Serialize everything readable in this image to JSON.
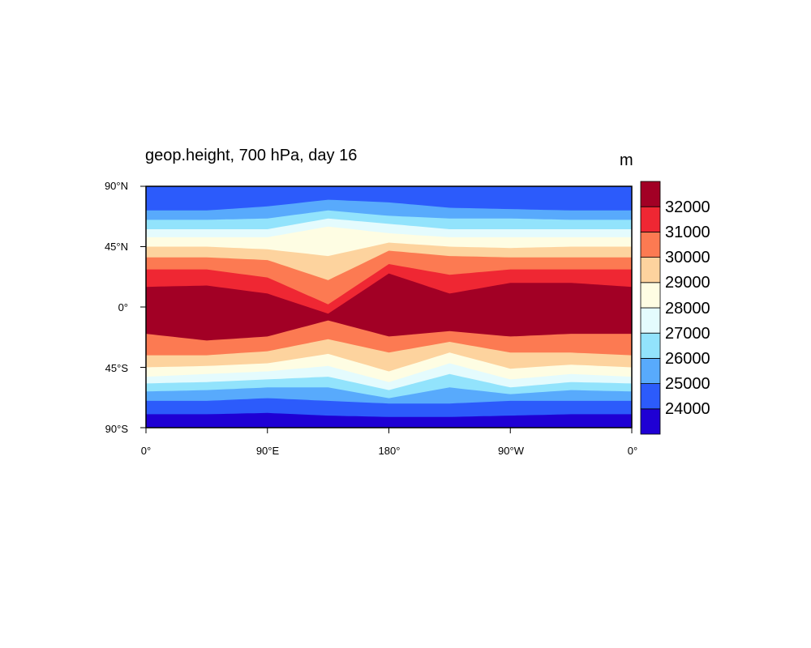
{
  "title": "geop.height, 700 hPa, day 16",
  "units": "m",
  "lat_labels": [
    "90°N",
    "45°N",
    "0°",
    "45°S",
    "90°S"
  ],
  "lon_labels": [
    "0°",
    "90°E",
    "180°",
    "90°W",
    "0°"
  ],
  "colorbar": {
    "levels": [
      "24000",
      "25000",
      "26000",
      "27000",
      "28000",
      "29000",
      "30000",
      "31000",
      "32000"
    ],
    "colors": [
      "#1f00d4",
      "#2c5bfb",
      "#58aafc",
      "#92e3fc",
      "#e4fbfd",
      "#fefde3",
      "#fdd39e",
      "#fc7a52",
      "#ef2733",
      "#a20025"
    ]
  },
  "chart_data": {
    "type": "heatmap",
    "title": "geop.height, 700 hPa, day 16",
    "units": "m",
    "x_ticks": [
      "0°",
      "90°E",
      "180°",
      "90°W",
      "0°"
    ],
    "y_ticks": [
      "90°N",
      "45°N",
      "0°",
      "45°S",
      "90°S"
    ],
    "xlim": [
      0,
      360
    ],
    "ylim": [
      -90,
      90
    ],
    "contour_levels": [
      24000,
      25000,
      26000,
      27000,
      28000,
      29000,
      30000,
      31000,
      32000
    ],
    "band_boundaries_lat": {
      "lon": [
        0,
        45,
        90,
        135,
        180,
        225,
        270,
        315,
        360
      ],
      "24000": [
        -80,
        -80,
        -79,
        -81,
        -82,
        -82,
        -81,
        -80,
        -80
      ],
      "25000": [
        -70,
        -70,
        -68,
        -70,
        -72,
        -72,
        -70,
        -70,
        -70
      ],
      "26000": [
        -63,
        -62,
        -60,
        -60,
        -68,
        -60,
        -65,
        -62,
        -63
      ],
      "27000": [
        -57,
        -56,
        -54,
        -52,
        -62,
        -50,
        -60,
        -56,
        -57
      ],
      "28000": [
        -52,
        -50,
        -48,
        -44,
        -56,
        -42,
        -54,
        -50,
        -52
      ],
      "29000": [
        -45,
        -44,
        -42,
        -35,
        -48,
        -34,
        -46,
        -43,
        -45
      ],
      "30000": [
        -36,
        -36,
        -33,
        -24,
        -34,
        -26,
        -34,
        -34,
        -36
      ],
      "31000": [
        -20,
        -25,
        -22,
        -10,
        -22,
        -18,
        -22,
        -20,
        -20
      ],
      "32000": [
        15,
        16,
        10,
        -5,
        25,
        10,
        18,
        18,
        15
      ],
      "31000n": [
        28,
        28,
        22,
        2,
        32,
        24,
        28,
        28,
        28
      ],
      "30000n": [
        37,
        37,
        35,
        20,
        42,
        38,
        37,
        37,
        37
      ],
      "29000n": [
        45,
        45,
        43,
        38,
        48,
        45,
        44,
        45,
        45
      ],
      "28000n": [
        52,
        52,
        52,
        60,
        55,
        52,
        52,
        52,
        52
      ],
      "27000n": [
        58,
        58,
        58,
        66,
        62,
        58,
        58,
        58,
        58
      ],
      "26000n": [
        65,
        65,
        66,
        72,
        68,
        66,
        66,
        65,
        65
      ],
      "25000n": [
        72,
        72,
        75,
        80,
        78,
        74,
        73,
        72,
        72
      ]
    }
  }
}
